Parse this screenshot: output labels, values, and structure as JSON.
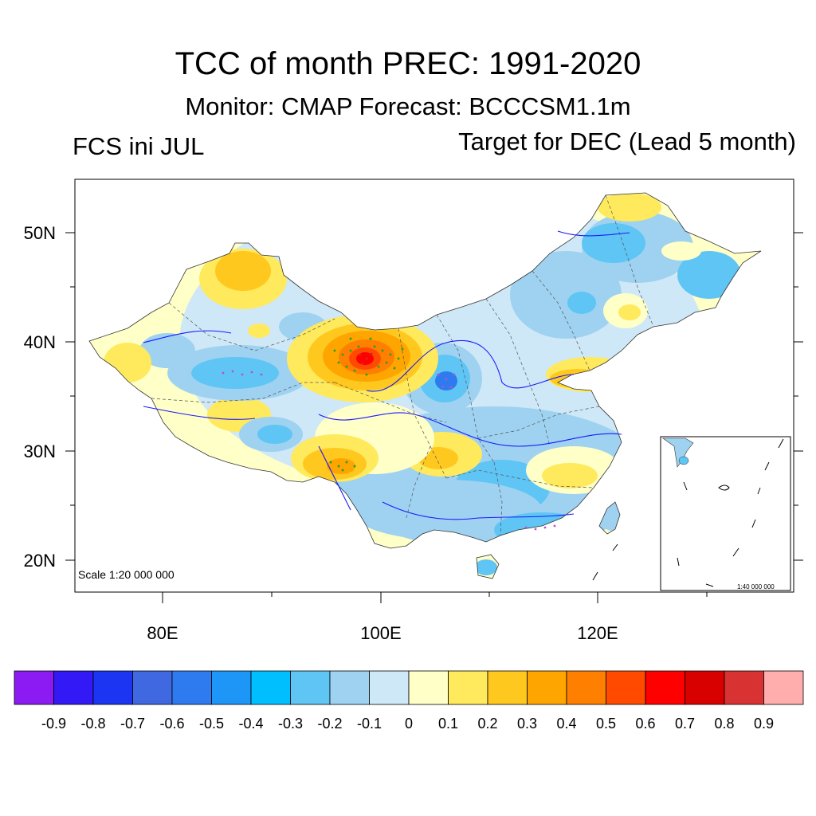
{
  "header": {
    "title": "TCC of month PREC: 1991-2020",
    "subtitle": "Monitor: CMAP   Forecast: BCCCSM1.1m",
    "left_label": "FCS ini JUL",
    "right_label": "Target for DEC (Lead 5 month)"
  },
  "map": {
    "lat_labels": [
      "50N",
      "40N",
      "30N",
      "20N"
    ],
    "lon_labels": [
      "80E",
      "100E",
      "120E"
    ],
    "scale_main": "Scale 1:20 000 000",
    "scale_inset": "1:40 000 000"
  },
  "colorbar": {
    "labels": [
      "-0.9",
      "-0.8",
      "-0.7",
      "-0.6",
      "-0.5",
      "-0.4",
      "-0.3",
      "-0.2",
      "-0.1",
      "0",
      "0.1",
      "0.2",
      "0.3",
      "0.4",
      "0.5",
      "0.6",
      "0.7",
      "0.8",
      "0.9"
    ],
    "colors": [
      "#8C1AF2",
      "#3319F5",
      "#1B35F2",
      "#4068E0",
      "#2E7BEF",
      "#1E96F7",
      "#00BFFF",
      "#5EC5F5",
      "#9ED2F0",
      "#CFE8F7",
      "#FFFFC8",
      "#FFE95C",
      "#FFC81E",
      "#FFA500",
      "#FF8000",
      "#FF4A00",
      "#FF0000",
      "#D90000",
      "#D93232",
      "#FFADAD"
    ]
  }
}
